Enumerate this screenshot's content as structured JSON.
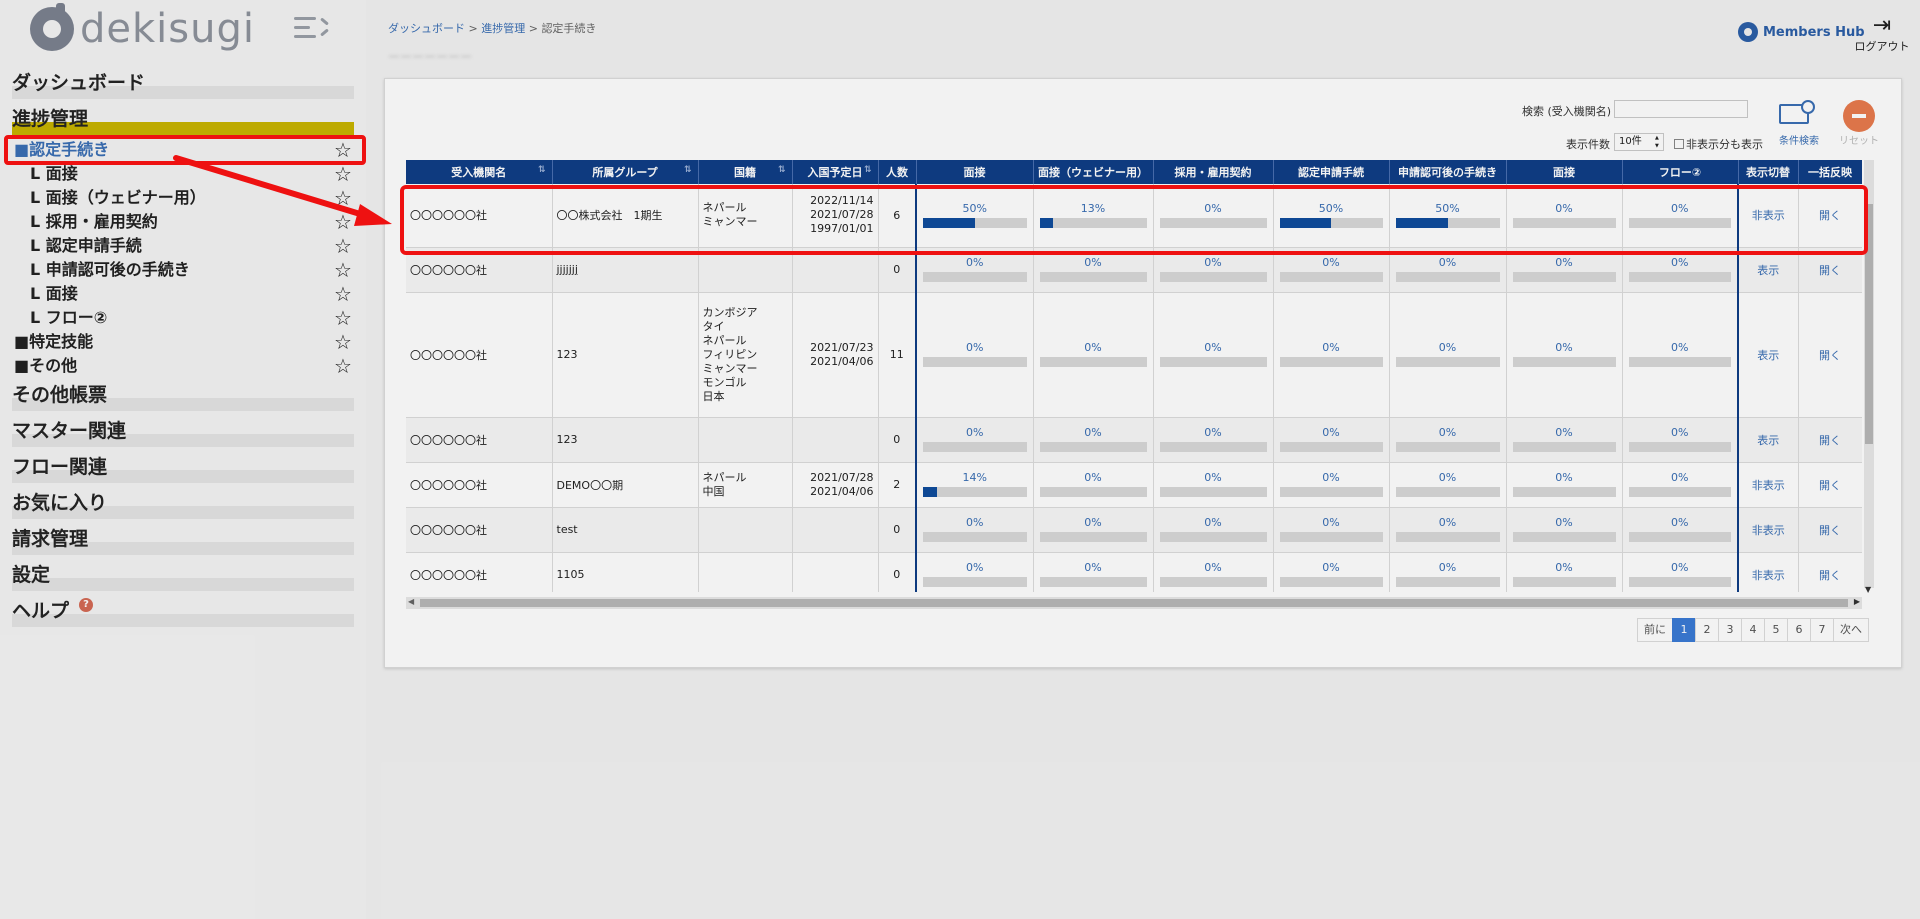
{
  "app": {
    "logo_text": "dekisugi",
    "members_hub": "Members Hub",
    "logout": "ログアウト"
  },
  "breadcrumb": {
    "items": [
      "ダッシュボード",
      "進捗管理",
      "認定手続き"
    ],
    "separator": ">"
  },
  "page_title": "ーーーーーーー",
  "sidebar": {
    "items": [
      {
        "label": "ダッシュボード"
      },
      {
        "label": "進捗管理"
      }
    ],
    "sub_items": [
      {
        "label": "■認定手続き",
        "section": true
      },
      {
        "label": "L 面接"
      },
      {
        "label": "L 面接（ウェビナー用）"
      },
      {
        "label": "L 採用・雇用契約"
      },
      {
        "label": "L 認定申請手続"
      },
      {
        "label": "L 申請認可後の手続き"
      },
      {
        "label": "L 面接"
      },
      {
        "label": "L フロー②"
      },
      {
        "label": "■特定技能",
        "section": true
      },
      {
        "label": "■その他",
        "section": true
      }
    ],
    "bottom_items": [
      {
        "label": "その他帳票"
      },
      {
        "label": "マスター関連"
      },
      {
        "label": "フロー関連"
      },
      {
        "label": "お気に入り"
      },
      {
        "label": "請求管理"
      },
      {
        "label": "設定"
      },
      {
        "label": "ヘルプ"
      }
    ],
    "help_badge": "?"
  },
  "toolbar": {
    "search_label": "検索 (受入機関名)",
    "search_value": "",
    "count_label": "表示件数",
    "count_value": "10件",
    "hidden_toggle_label": "非表示分も表示",
    "cond_search_label": "条件検索",
    "reset_label": "リセット"
  },
  "table": {
    "columns": [
      "受入機関名",
      "所属グループ",
      "国籍",
      "入国予定日",
      "人数",
      "面接",
      "面接（ウェビナー用）",
      "採用・雇用契約",
      "認定申請手続",
      "申請認可後の手続き",
      "面接",
      "フロー②",
      "表示切替",
      "一括反映"
    ],
    "rows": [
      {
        "org": "〇〇〇〇〇〇社",
        "group": "〇〇株式会社　1期生",
        "nationality": [
          "ネパール",
          "ミャンマー"
        ],
        "dates": [
          "2022/11/14",
          "2021/07/28",
          "1997/01/01"
        ],
        "count": "6",
        "progress": [
          "50%",
          "13%",
          "0%",
          "50%",
          "50%",
          "0%",
          "0%"
        ],
        "progress_values": [
          50,
          13,
          0,
          50,
          50,
          0,
          0
        ],
        "toggle": "非表示",
        "apply": "開く"
      },
      {
        "org": "〇〇〇〇〇〇社",
        "group": "jjjjjjj",
        "nationality": [],
        "dates": [],
        "count": "0",
        "progress": [
          "0%",
          "0%",
          "0%",
          "0%",
          "0%",
          "0%",
          "0%"
        ],
        "progress_values": [
          0,
          0,
          0,
          0,
          0,
          0,
          0
        ],
        "toggle": "表示",
        "apply": "開く"
      },
      {
        "org": "〇〇〇〇〇〇社",
        "group": "123",
        "nationality": [
          "カンボジア",
          "タイ",
          "ネパール",
          "フィリピン",
          "ミャンマー",
          "モンゴル",
          "日本"
        ],
        "dates": [
          "2021/07/23",
          "2021/04/06"
        ],
        "count": "11",
        "progress": [
          "0%",
          "0%",
          "0%",
          "0%",
          "0%",
          "0%",
          "0%"
        ],
        "progress_values": [
          0,
          0,
          0,
          0,
          0,
          0,
          0
        ],
        "toggle": "表示",
        "apply": "開く"
      },
      {
        "org": "〇〇〇〇〇〇社",
        "group": "123",
        "nationality": [],
        "dates": [],
        "count": "0",
        "progress": [
          "0%",
          "0%",
          "0%",
          "0%",
          "0%",
          "0%",
          "0%"
        ],
        "progress_values": [
          0,
          0,
          0,
          0,
          0,
          0,
          0
        ],
        "toggle": "表示",
        "apply": "開く"
      },
      {
        "org": "〇〇〇〇〇〇社",
        "group": "DEMO〇〇期",
        "nationality": [
          "ネパール",
          "中国"
        ],
        "dates": [
          "2021/07/28",
          "2021/04/06"
        ],
        "count": "2",
        "progress": [
          "14%",
          "0%",
          "0%",
          "0%",
          "0%",
          "0%",
          "0%"
        ],
        "progress_values": [
          14,
          0,
          0,
          0,
          0,
          0,
          0
        ],
        "toggle": "非表示",
        "apply": "開く"
      },
      {
        "org": "〇〇〇〇〇〇社",
        "group": "test",
        "nationality": [],
        "dates": [],
        "count": "0",
        "progress": [
          "0%",
          "0%",
          "0%",
          "0%",
          "0%",
          "0%",
          "0%"
        ],
        "progress_values": [
          0,
          0,
          0,
          0,
          0,
          0,
          0
        ],
        "toggle": "非表示",
        "apply": "開く"
      },
      {
        "org": "〇〇〇〇〇〇社",
        "group": "1105",
        "nationality": [],
        "dates": [],
        "count": "0",
        "progress": [
          "0%",
          "0%",
          "0%",
          "0%",
          "0%",
          "0%",
          "0%"
        ],
        "progress_values": [
          0,
          0,
          0,
          0,
          0,
          0,
          0
        ],
        "toggle": "非表示",
        "apply": "開く"
      }
    ]
  },
  "pagination": {
    "prev": "前に",
    "pages": [
      "1",
      "2",
      "3",
      "4",
      "5",
      "6",
      "7"
    ],
    "active": "1",
    "next": "次へ"
  },
  "colors": {
    "accent": "#0f3e86",
    "highlight": "#ee1111",
    "nav_active": "#c8b400",
    "link": "#3a6fb5"
  }
}
